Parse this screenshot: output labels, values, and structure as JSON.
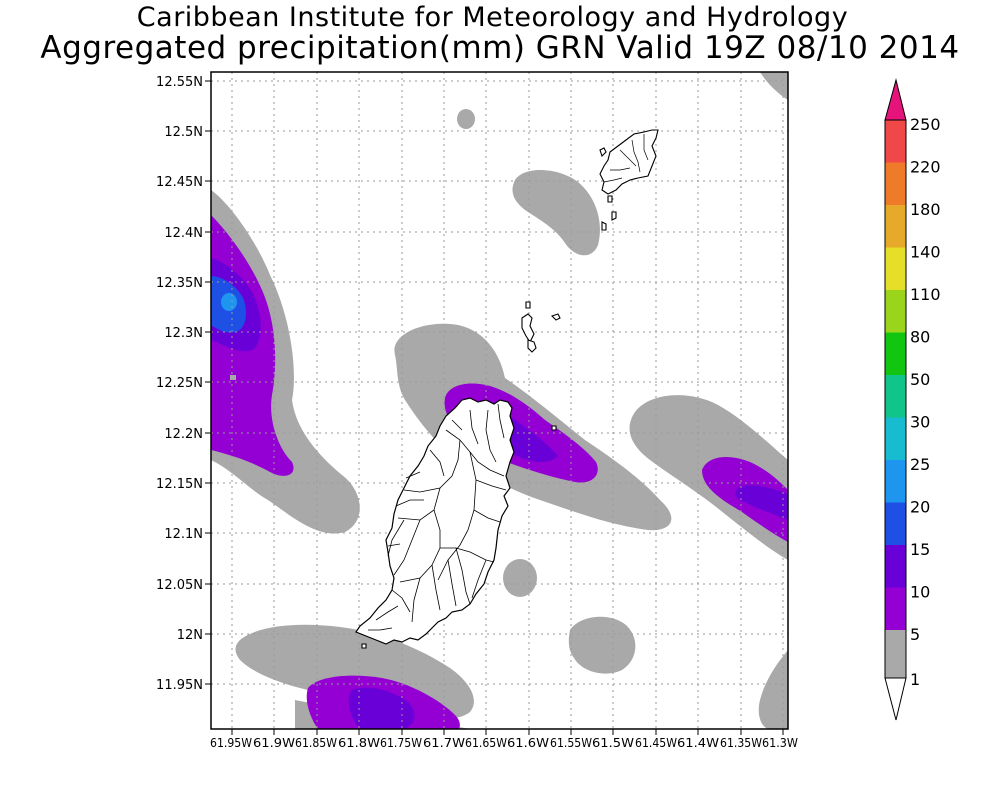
{
  "title": {
    "line1": "Caribbean Institute for Meteorology and Hydrology",
    "line2": "Aggregated precipitation(mm) GRN Valid 19Z 08/10 2014"
  },
  "map": {
    "lat_labels": [
      "12.55N",
      "12.5N",
      "12.45N",
      "12.4N",
      "12.35N",
      "12.3N",
      "12.25N",
      "12.2N",
      "12.15N",
      "12.1N",
      "12.05N",
      "12N",
      "11.95N"
    ],
    "lon_labels": [
      "61.95W",
      "61.9W",
      "61.85W",
      "61.8W",
      "61.75W",
      "61.7W",
      "61.65W",
      "61.6W",
      "61.55W",
      "61.5W",
      "61.45W",
      "61.4W",
      "61.35W",
      "61.3W"
    ],
    "lon_range": [
      -61.97,
      -61.29
    ],
    "lat_range": [
      11.905,
      12.56
    ]
  },
  "colorbar": {
    "levels": [
      "1",
      "5",
      "10",
      "15",
      "20",
      "25",
      "30",
      "50",
      "80",
      "110",
      "140",
      "180",
      "220",
      "250"
    ],
    "colors": [
      "#ffffff",
      "#a9a9a9",
      "#9400d3",
      "#6a00d8",
      "#1e50e6",
      "#1e96f0",
      "#17bcd0",
      "#10c48a",
      "#11c511",
      "#9bd51b",
      "#e5df2a",
      "#e6a92a",
      "#ef7b2a",
      "#f04848",
      "#e6147a"
    ]
  },
  "precip_colors": {
    "light": "#a9a9a9",
    "moderate": "#9400d3",
    "heavy": "#6a00d8",
    "intense": "#1e50e6",
    "peak": "#1e96f0"
  }
}
